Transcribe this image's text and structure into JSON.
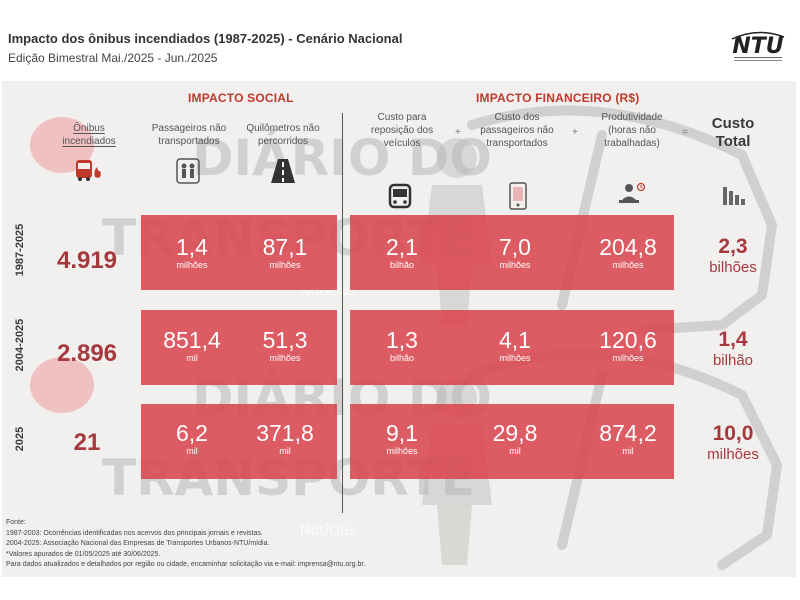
{
  "header": {
    "title": "Impacto dos ônibus incendiados (1987-2025) - Cenário Nacional",
    "subtitle": "Edição Bimestral Mai./2025 - Jun./2025",
    "logo_text": "NTU"
  },
  "sections": {
    "social": "IMPACTO SOCIAL",
    "financeiro": "IMPACTO FINANCEIRO (R$)"
  },
  "columns": {
    "onibus": "Ônibus incendiados",
    "passageiros": "Passageiros não transportados",
    "quilometros": "Quilômetros não percorridos",
    "custo_veiculos": "Custo para reposição dos veículos",
    "custo_passageiros": "Custo dos passageiros não transportados",
    "produtividade": "Produtividade (horas não trabalhadas)",
    "custo_total": "Custo Total"
  },
  "operators": {
    "plus1": "+",
    "plus2": "+",
    "equals": "="
  },
  "rows": [
    {
      "label": "1987-2025",
      "onibus": "4.919",
      "passageiros": {
        "value": "1,4",
        "unit": "milhões"
      },
      "quilometros": {
        "value": "87,1",
        "unit": "milhões"
      },
      "custo_veiculos": {
        "value": "2,1",
        "unit": "bilhão"
      },
      "custo_passageiros": {
        "value": "7,0",
        "unit": "milhões"
      },
      "produtividade": {
        "value": "204,8",
        "unit": "milhões"
      },
      "total": {
        "value": "2,3",
        "unit": "bilhões"
      }
    },
    {
      "label": "2004-2025",
      "onibus": "2.896",
      "passageiros": {
        "value": "851,4",
        "unit": "mil"
      },
      "quilometros": {
        "value": "51,3",
        "unit": "milhões"
      },
      "custo_veiculos": {
        "value": "1,3",
        "unit": "bilhão"
      },
      "custo_passageiros": {
        "value": "4,1",
        "unit": "milhões"
      },
      "produtividade": {
        "value": "120,6",
        "unit": "milhões"
      },
      "total": {
        "value": "1,4",
        "unit": "bilhão"
      }
    },
    {
      "label": "2025",
      "onibus": "21",
      "passageiros": {
        "value": "6,2",
        "unit": "mil"
      },
      "quilometros": {
        "value": "371,8",
        "unit": "mil"
      },
      "custo_veiculos": {
        "value": "9,1",
        "unit": "milhões"
      },
      "custo_passageiros": {
        "value": "29,8",
        "unit": "mil"
      },
      "produtividade": {
        "value": "874,2",
        "unit": "mil"
      },
      "total": {
        "value": "10,0",
        "unit": "milhões"
      }
    }
  ],
  "watermark": {
    "line1": "DIÁRIO DO",
    "line2": "TRANSPORTE",
    "noticias": "Notícias"
  },
  "footer": {
    "fonte": "Fonte:",
    "line1": "1987-2003: Ocorrências identificadas nos acervos dos principais jornais e revistas.",
    "line2": "2004-2025: Associação Nacional das Empresas de Transportes Urbanos-NTU/mídia.",
    "line3": "*Valores apurados de 01/05/2025 até 30/06/2025.",
    "line4": "Para dados atualizados e detalhados por região ou cidade, encaminhar solicitação via e-mail: imprensa@ntu.org.br."
  },
  "colors": {
    "band": "#d9454f",
    "accent": "#a5393e",
    "section_head": "#c0392b"
  },
  "icons": {
    "onibus": "burning-bus-icon",
    "passageiros": "passengers-icon",
    "quilometros": "road-icon",
    "custo_veiculos": "bus-icon",
    "custo_passageiros": "mobile-ticket-icon",
    "produtividade": "worker-computer-icon",
    "custo_total": "declining-chart-icon"
  }
}
